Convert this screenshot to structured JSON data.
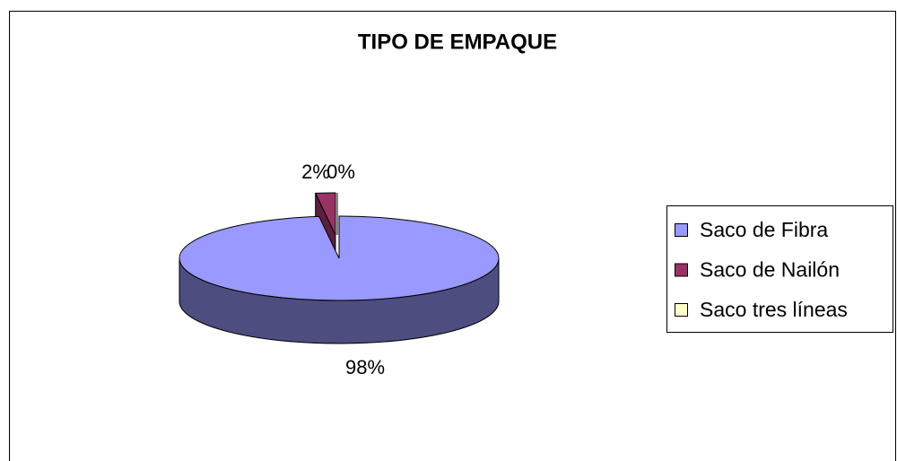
{
  "chart_data": {
    "type": "pie",
    "title": "TIPO DE EMPAQUE",
    "categories": [
      "Saco de Fibra",
      "Saco de Nailón",
      "Saco tres líneas"
    ],
    "values": [
      98,
      2,
      0
    ],
    "value_labels": [
      "98%",
      "2%",
      "0%"
    ],
    "colors": [
      "#9999ff",
      "#993366",
      "#ffffcc"
    ],
    "side_colors": [
      "#4d4d80",
      "#5c1f3d",
      "#99997a"
    ],
    "legend": "right"
  }
}
